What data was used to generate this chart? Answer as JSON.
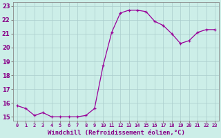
{
  "x": [
    0,
    1,
    2,
    3,
    4,
    5,
    6,
    7,
    8,
    9,
    10,
    11,
    12,
    13,
    14,
    15,
    16,
    17,
    18,
    19,
    20,
    21,
    22,
    23
  ],
  "y": [
    15.8,
    15.6,
    15.1,
    15.3,
    15.0,
    15.0,
    15.0,
    15.0,
    15.1,
    15.6,
    18.7,
    21.1,
    22.5,
    22.7,
    22.7,
    22.6,
    21.9,
    21.6,
    21.0,
    20.3,
    20.5,
    21.1,
    21.3,
    21.3
  ],
  "line_color": "#990099",
  "marker": "+",
  "marker_size": 3,
  "line_width": 0.9,
  "bg_color": "#cceee8",
  "grid_color": "#aacccc",
  "xlabel": "Windchill (Refroidissement éolien,°C)",
  "xlabel_color": "#880088",
  "ylabel_ticks": [
    15,
    16,
    17,
    18,
    19,
    20,
    21,
    22,
    23
  ],
  "xtick_labels": [
    "0",
    "1",
    "2",
    "3",
    "4",
    "5",
    "6",
    "7",
    "8",
    "9",
    "10",
    "11",
    "12",
    "13",
    "14",
    "15",
    "16",
    "17",
    "18",
    "19",
    "20",
    "21",
    "22",
    "23"
  ],
  "xlim": [
    -0.5,
    23.5
  ],
  "ylim": [
    14.7,
    23.3
  ],
  "tick_color": "#880088",
  "spine_color": "#888888"
}
